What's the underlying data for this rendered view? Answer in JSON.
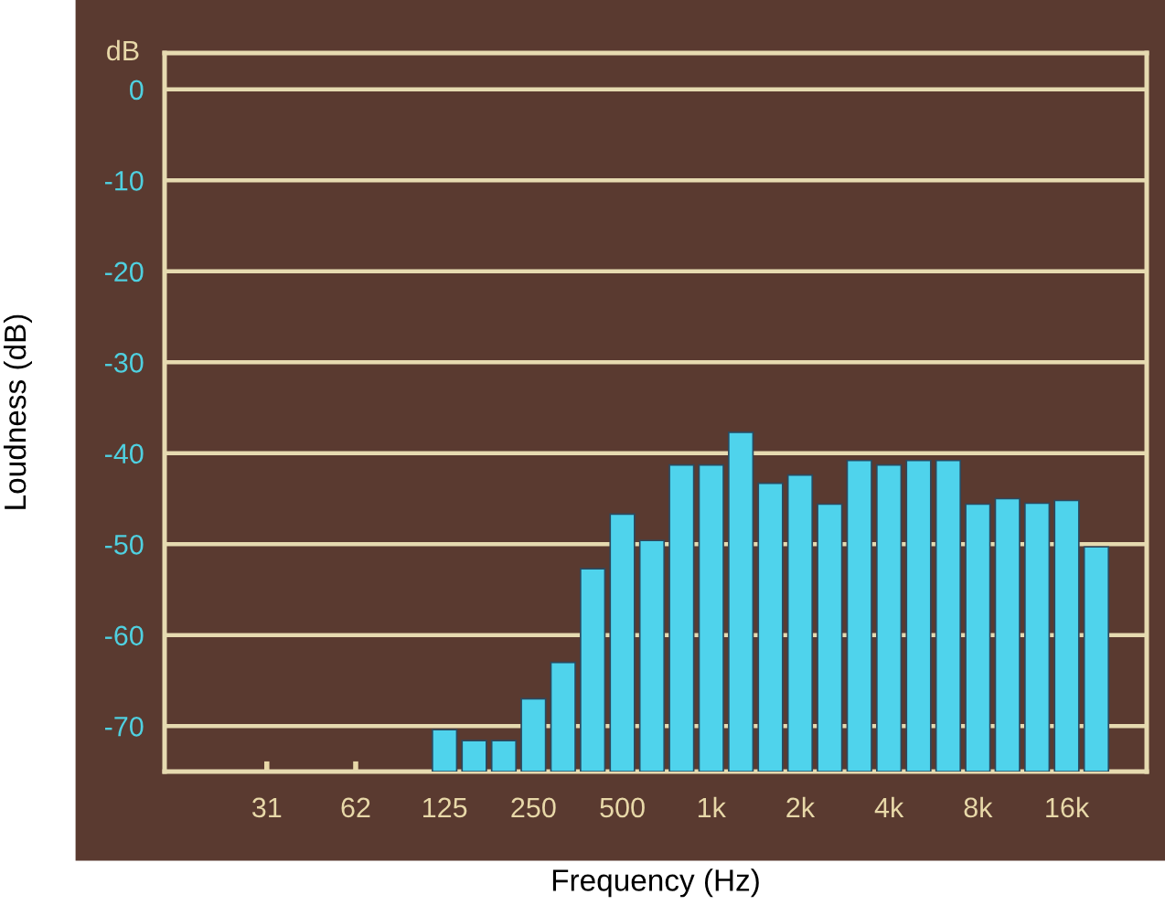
{
  "chart_data": {
    "type": "bar",
    "xlabel": "Frequency (Hz)",
    "ylabel": "Loudness (dB)",
    "annotations": [
      "dB"
    ],
    "categories": [
      null,
      null,
      "31",
      null,
      null,
      "62",
      null,
      null,
      "125",
      null,
      null,
      "250",
      null,
      null,
      "500",
      null,
      null,
      "1k",
      null,
      null,
      "2k",
      null,
      null,
      "4k",
      null,
      null,
      "8k",
      null,
      null,
      "16k",
      null
    ],
    "values": [
      null,
      null,
      null,
      null,
      null,
      null,
      null,
      null,
      4.6,
      3.4,
      3.4,
      8,
      12,
      22.3,
      28.3,
      25.4,
      33.7,
      33.7,
      37.3,
      31.7,
      32.6,
      29.4,
      34.2,
      33.7,
      34.2,
      34.2,
      29.4,
      30,
      29.5,
      29.8,
      24.7
    ],
    "base": [
      null,
      null,
      null,
      null,
      null,
      null,
      null,
      null,
      -75,
      -75,
      -75,
      -75,
      -75,
      -75,
      -75,
      -75,
      -75,
      -75,
      -75,
      -75,
      -75,
      -75,
      -75,
      -75,
      -75,
      -75,
      -75,
      -75,
      -75,
      -75,
      -75
    ],
    "color": "#4fd3ec",
    "ylim": [
      -75,
      4
    ],
    "yticks": [
      0,
      -10,
      -20,
      -30,
      -40,
      -50,
      -60,
      -70
    ],
    "grid": "y"
  }
}
